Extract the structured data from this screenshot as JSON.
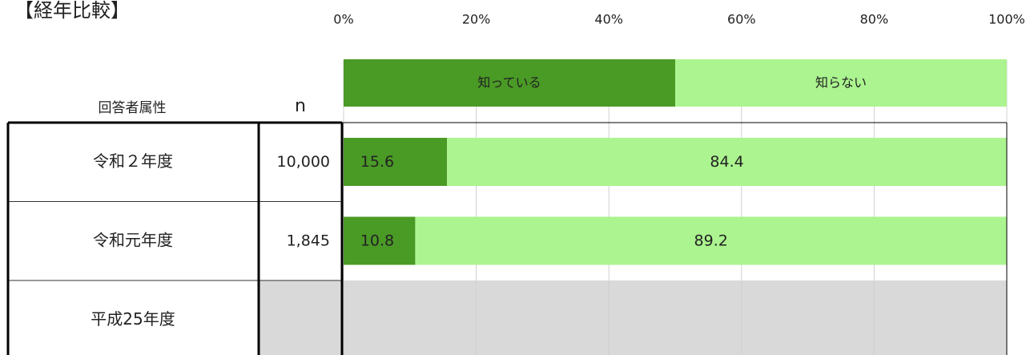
{
  "chart_data": {
    "type": "stacked_barh",
    "title": "【経年比較】",
    "row_header": "回答者属性",
    "n_header": "n",
    "categories": [
      "令和２年度",
      "令和元年度",
      "平成25年度"
    ],
    "n_labels": [
      "10,000",
      "1,845",
      null
    ],
    "series": [
      {
        "name": "知っている",
        "color": "#4a9a26",
        "values": [
          15.6,
          10.8,
          null
        ]
      },
      {
        "name": "知らない",
        "color": "#abf48f",
        "values": [
          84.4,
          89.2,
          null
        ]
      }
    ],
    "xlim": [
      0,
      100
    ],
    "xticks": [
      {
        "value": 0,
        "label": "0%"
      },
      {
        "value": 20,
        "label": "20%"
      },
      {
        "value": 40,
        "label": "40%"
      },
      {
        "value": 60,
        "label": "60%"
      },
      {
        "value": 80,
        "label": "80%"
      },
      {
        "value": 100,
        "label": "100%"
      }
    ],
    "grid": true
  }
}
